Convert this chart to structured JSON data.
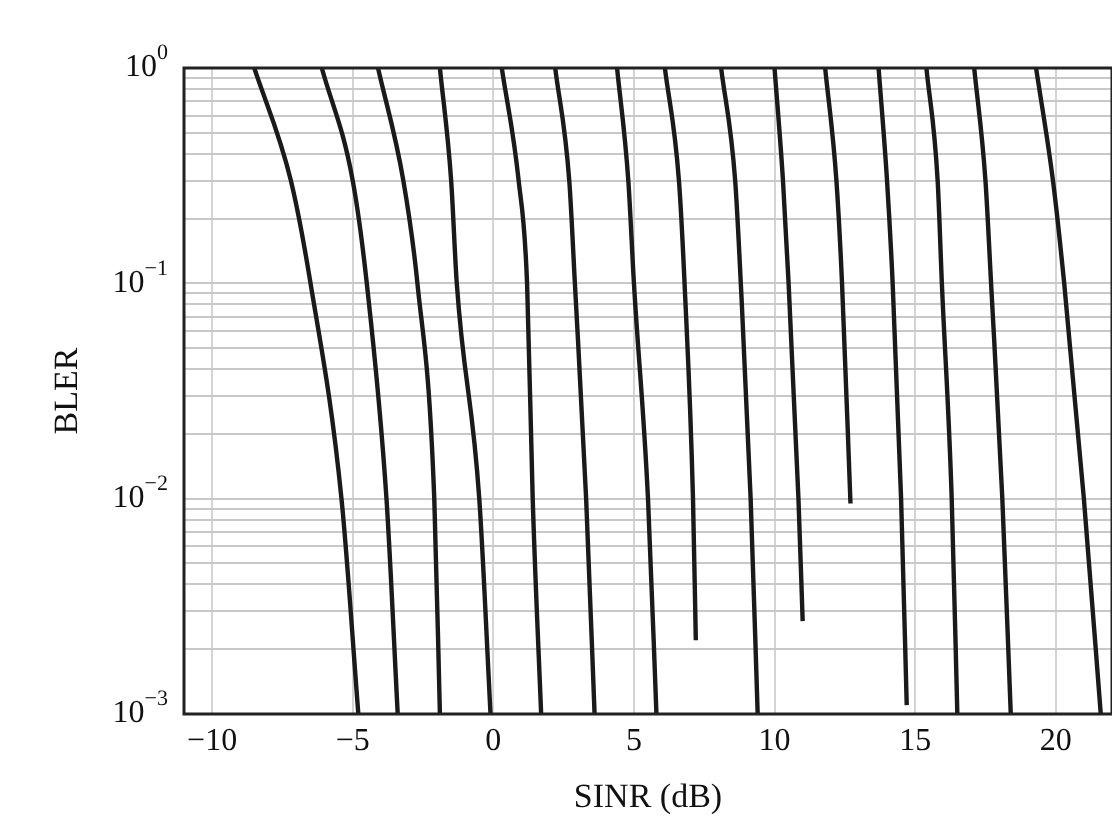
{
  "chart_data": {
    "type": "line",
    "xlabel": "SINR (dB)",
    "ylabel": "BLER",
    "log": "y",
    "grid": true,
    "legend": false,
    "marker": "none",
    "line_style": "solid",
    "xlim": [
      -11,
      22
    ],
    "xticks": [
      {
        "value": -10,
        "label": "−10"
      },
      {
        "value": -5,
        "label": "−5"
      },
      0,
      5,
      10,
      15,
      20
    ],
    "ylim": [
      0.001,
      1
    ],
    "yticks": [
      {
        "value": 0.001,
        "label": "10$^{−3}$"
      },
      {
        "value": 0.002,
        "label": null
      },
      {
        "value": 0.003,
        "label": null
      },
      {
        "value": 0.004,
        "label": null
      },
      {
        "value": 0.005,
        "label": null
      },
      {
        "value": 0.006,
        "label": null
      },
      {
        "value": 0.007,
        "label": null
      },
      {
        "value": 0.008,
        "label": null
      },
      {
        "value": 0.009,
        "label": null
      },
      {
        "value": 0.01,
        "label": "10$^{−2}$"
      },
      {
        "value": 0.02,
        "label": null
      },
      {
        "value": 0.03,
        "label": null
      },
      {
        "value": 0.04,
        "label": null
      },
      {
        "value": 0.05,
        "label": null
      },
      {
        "value": 0.06,
        "label": null
      },
      {
        "value": 0.07,
        "label": null
      },
      {
        "value": 0.08,
        "label": null
      },
      {
        "value": 0.09,
        "label": null
      },
      {
        "value": 0.1,
        "label": "10$^{−1}$"
      },
      {
        "value": 0.2,
        "label": null
      },
      {
        "value": 0.3,
        "label": null
      },
      {
        "value": 0.4,
        "label": null
      },
      {
        "value": 0.5,
        "label": null
      },
      {
        "value": 0.6,
        "label": null
      },
      {
        "value": 0.7,
        "label": null
      },
      {
        "value": 0.8,
        "label": null
      },
      {
        "value": 0.9,
        "label": null
      },
      {
        "value": 1,
        "label": "10$^{0}$"
      }
    ],
    "series": [
      {
        "color": "#1a1a1a",
        "x": [
          -8.5,
          -7.2,
          -6.5,
          -5.4,
          -4.8
        ],
        "values": [
          1,
          0.3,
          0.1,
          0.01,
          0.001
        ]
      },
      {
        "color": "#1a1a1a",
        "x": [
          -6.1,
          -5.0,
          -4.5,
          -3.8,
          -3.4
        ],
        "values": [
          1,
          0.3,
          0.1,
          0.01,
          0.001
        ]
      },
      {
        "color": "#1a1a1a",
        "x": [
          -4.1,
          -3.2,
          -2.7,
          -2.1,
          -1.9
        ],
        "values": [
          1,
          0.3,
          0.1,
          0.01,
          0.001
        ]
      },
      {
        "color": "#1a1a1a",
        "x": [
          -1.9,
          -1.5,
          -1.3,
          -0.5,
          -0.1
        ],
        "values": [
          1,
          0.3,
          0.1,
          0.01,
          0.001
        ]
      },
      {
        "color": "#1a1a1a",
        "x": [
          0.3,
          0.9,
          1.2,
          1.4,
          1.7
        ],
        "values": [
          1,
          0.3,
          0.1,
          0.01,
          0.001
        ]
      },
      {
        "color": "#1a1a1a",
        "x": [
          2.2,
          2.7,
          2.9,
          3.3,
          3.6
        ],
        "values": [
          1,
          0.3,
          0.1,
          0.01,
          0.001
        ]
      },
      {
        "color": "#1a1a1a",
        "x": [
          4.4,
          4.8,
          5.0,
          5.5,
          5.8
        ],
        "values": [
          1,
          0.3,
          0.1,
          0.01,
          0.001
        ]
      },
      {
        "color": "#1a1a1a",
        "x": [
          6.1,
          6.6,
          6.8,
          7.1,
          7.2
        ],
        "values": [
          1,
          0.3,
          0.1,
          0.01,
          0.0022
        ]
      },
      {
        "color": "#1a1a1a",
        "x": [
          8.1,
          8.6,
          8.8,
          9.15,
          9.4
        ],
        "values": [
          1,
          0.3,
          0.1,
          0.01,
          0.001
        ]
      },
      {
        "color": "#1a1a1a",
        "x": [
          10.0,
          10.3,
          10.5,
          10.85,
          11.0
        ],
        "values": [
          1,
          0.3,
          0.1,
          0.01,
          0.0027
        ]
      },
      {
        "color": "#1a1a1a",
        "x": [
          11.8,
          12.2,
          12.4,
          12.7
        ],
        "values": [
          1,
          0.3,
          0.1,
          0.0095
        ]
      },
      {
        "color": "#1a1a1a",
        "x": [
          13.7,
          14.0,
          14.2,
          14.5,
          14.7
        ],
        "values": [
          1,
          0.3,
          0.1,
          0.01,
          0.0011
        ]
      },
      {
        "color": "#1a1a1a",
        "x": [
          15.4,
          15.8,
          15.95,
          16.3,
          16.5
        ],
        "values": [
          1,
          0.3,
          0.1,
          0.01,
          0.001
        ]
      },
      {
        "color": "#1a1a1a",
        "x": [
          17.1,
          17.5,
          17.7,
          18.1,
          18.4
        ],
        "values": [
          1,
          0.3,
          0.1,
          0.01,
          0.001
        ]
      },
      {
        "color": "#1a1a1a",
        "x": [
          19.3,
          19.9,
          20.3,
          21.0,
          21.6
        ],
        "values": [
          1,
          0.3,
          0.1,
          0.01,
          0.001
        ]
      }
    ]
  }
}
